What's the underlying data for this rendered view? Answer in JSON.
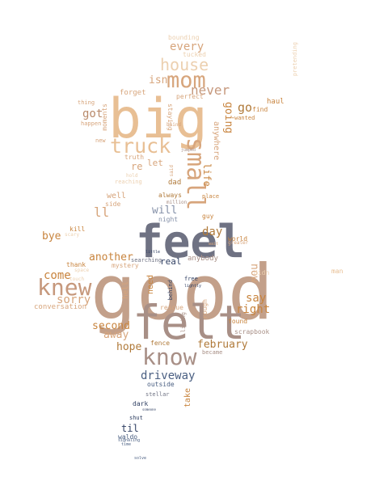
{
  "colors": {
    "peach": "#e8bf94",
    "tan": "#c6987c",
    "taupe": "#a88f86",
    "slate": "#6f7283",
    "navy": "#2f3f62",
    "bronze": "#c8843e",
    "pale": "#f0dcc6",
    "blue": "#4a5f82"
  },
  "words": [
    {
      "id": "good",
      "text": "good"
    },
    {
      "id": "feel",
      "text": "feel"
    },
    {
      "id": "felt",
      "text": "felt"
    },
    {
      "id": "big",
      "text": "big"
    },
    {
      "id": "knew",
      "text": "knew"
    },
    {
      "id": "know",
      "text": "know"
    },
    {
      "id": "small",
      "text": "small"
    },
    {
      "id": "mom",
      "text": "mom"
    },
    {
      "id": "truck",
      "text": "truck"
    },
    {
      "id": "house",
      "text": "house"
    },
    {
      "id": "never",
      "text": "never"
    },
    {
      "id": "every",
      "text": "every"
    },
    {
      "id": "isn",
      "text": "isn"
    },
    {
      "id": "go",
      "text": "go"
    },
    {
      "id": "going",
      "text": "going"
    },
    {
      "id": "got",
      "text": "got"
    },
    {
      "id": "will",
      "text": "will"
    },
    {
      "id": "ll",
      "text": "ll"
    },
    {
      "id": "day",
      "text": "day"
    },
    {
      "id": "bye",
      "text": "bye"
    },
    {
      "id": "come",
      "text": "come"
    },
    {
      "id": "sorry",
      "text": "sorry"
    },
    {
      "id": "another",
      "text": "another"
    },
    {
      "id": "second",
      "text": "second"
    },
    {
      "id": "away",
      "text": "away"
    },
    {
      "id": "hope",
      "text": "hope"
    },
    {
      "id": "february",
      "text": "february"
    },
    {
      "id": "driveway",
      "text": "driveway"
    },
    {
      "id": "right",
      "text": "right"
    },
    {
      "id": "say",
      "text": "say"
    },
    {
      "id": "now",
      "text": "now"
    },
    {
      "id": "life",
      "text": "life"
    },
    {
      "id": "anywhere",
      "text": "anywhere"
    },
    {
      "id": "til",
      "text": "til"
    },
    {
      "id": "take",
      "text": "take"
    },
    {
      "id": "real",
      "text": "real"
    },
    {
      "id": "need",
      "text": "need"
    },
    {
      "id": "hell",
      "text": "hell"
    },
    {
      "id": "let",
      "text": "let"
    },
    {
      "id": "re",
      "text": "re"
    },
    {
      "id": "well",
      "text": "well"
    },
    {
      "id": "side",
      "text": "side"
    },
    {
      "id": "dad",
      "text": "dad"
    },
    {
      "id": "always",
      "text": "always"
    },
    {
      "id": "bounding",
      "text": "bounding"
    },
    {
      "id": "tucked",
      "text": "tucked"
    },
    {
      "id": "perfect",
      "text": "perfect"
    },
    {
      "id": "forget",
      "text": "forget"
    },
    {
      "id": "staying",
      "text": "staying"
    },
    {
      "id": "moments",
      "text": "moments"
    },
    {
      "id": "haul",
      "text": "haul"
    },
    {
      "id": "find",
      "text": "find"
    },
    {
      "id": "wanted",
      "text": "wanted"
    },
    {
      "id": "truth",
      "text": "truth"
    },
    {
      "id": "reaching",
      "text": "reaching"
    },
    {
      "id": "kill",
      "text": "kill"
    },
    {
      "id": "mystery",
      "text": "mystery"
    },
    {
      "id": "thank",
      "text": "thank"
    },
    {
      "id": "conversation",
      "text": "conversation"
    },
    {
      "id": "night",
      "text": "night"
    },
    {
      "id": "guy",
      "text": "guy"
    },
    {
      "id": "place",
      "text": "place"
    },
    {
      "id": "world",
      "text": "world"
    },
    {
      "id": "anybody",
      "text": "anybody"
    },
    {
      "id": "searching",
      "text": "searching"
    },
    {
      "id": "fence",
      "text": "fence"
    },
    {
      "id": "rescue",
      "text": "rescue"
    },
    {
      "id": "rough",
      "text": "rough"
    },
    {
      "id": "found",
      "text": "found"
    },
    {
      "id": "scrapbook",
      "text": "scrapbook"
    },
    {
      "id": "became",
      "text": "became"
    },
    {
      "id": "outside",
      "text": "outside"
    },
    {
      "id": "stellar",
      "text": "stellar"
    },
    {
      "id": "dark",
      "text": "dark"
    },
    {
      "id": "shut",
      "text": "shut"
    },
    {
      "id": "waldo",
      "text": "waldo"
    },
    {
      "id": "man",
      "text": "man"
    },
    {
      "id": "pretending",
      "text": "pretending"
    },
    {
      "id": "living",
      "text": "living"
    },
    {
      "id": "free",
      "text": "free"
    },
    {
      "id": "behind",
      "text": "behind"
    },
    {
      "id": "didn",
      "text": "didn"
    },
    {
      "id": "happen",
      "text": "happen"
    },
    {
      "id": "new",
      "text": "new"
    },
    {
      "id": "thing",
      "text": "thing"
    },
    {
      "id": "blind",
      "text": "blind"
    },
    {
      "id": "said",
      "text": "said"
    },
    {
      "id": "million",
      "text": "million"
    },
    {
      "id": "little",
      "text": "little"
    },
    {
      "id": "lightly",
      "text": "lightly"
    },
    {
      "id": "touch",
      "text": "touch"
    },
    {
      "id": "space",
      "text": "space"
    },
    {
      "id": "scary",
      "text": "scary"
    },
    {
      "id": "jumped",
      "text": "jumped"
    },
    {
      "id": "hold",
      "text": "hold"
    },
    {
      "id": "someone",
      "text": "someone"
    },
    {
      "id": "solve",
      "text": "solve"
    },
    {
      "id": "time",
      "text": "time"
    },
    {
      "id": "signaling",
      "text": "signaling"
    },
    {
      "id": "greater",
      "text": "greater"
    },
    {
      "id": "wait",
      "text": "wait"
    }
  ]
}
